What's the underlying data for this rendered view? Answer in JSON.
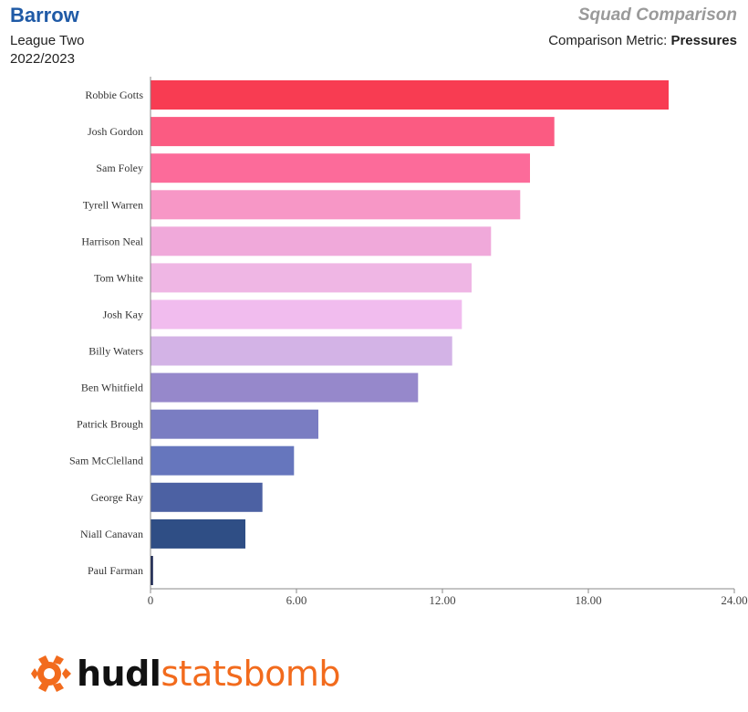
{
  "header": {
    "team": "Barrow",
    "league": "League Two",
    "season": "2022/2023",
    "report_title": "Squad Comparison",
    "metric_prefix": "Comparison Metric:",
    "metric_name": "Pressures"
  },
  "brand": {
    "part1": "hudl",
    "part2": "statsbomb",
    "icon": "statsbomb-logo-icon",
    "accent": "#f26b1d"
  },
  "chart_data": {
    "type": "bar",
    "orientation": "horizontal",
    "categories": [
      "Robbie Gotts",
      "Josh Gordon",
      "Sam Foley",
      "Tyrell Warren",
      "Harrison Neal",
      "Tom White",
      "Josh Kay",
      "Billy Waters",
      "Ben Whitfield",
      "Patrick Brough",
      "Sam McClelland",
      "George Ray",
      "Niall Canavan",
      "Paul Farman"
    ],
    "values": [
      21.3,
      16.6,
      15.6,
      15.2,
      14.0,
      13.2,
      12.8,
      12.4,
      11.0,
      6.9,
      5.9,
      4.6,
      3.9,
      0.1
    ],
    "colors": [
      "#f83c52",
      "#fb5b82",
      "#fc6b9a",
      "#f797c6",
      "#f0a9da",
      "#efb6e4",
      "#f1bcee",
      "#d3b3e6",
      "#9688cb",
      "#7a7dc2",
      "#6676bd",
      "#4c61a3",
      "#2f4e85",
      "#121e4c"
    ],
    "xlim": [
      0,
      24
    ],
    "xticks": [
      "0",
      "6.00",
      "12.00",
      "18.00",
      "24.00"
    ],
    "xtick_values": [
      0,
      6,
      12,
      18,
      24
    ],
    "xlabel": "",
    "ylabel": "",
    "grid": false,
    "legend": "none"
  }
}
